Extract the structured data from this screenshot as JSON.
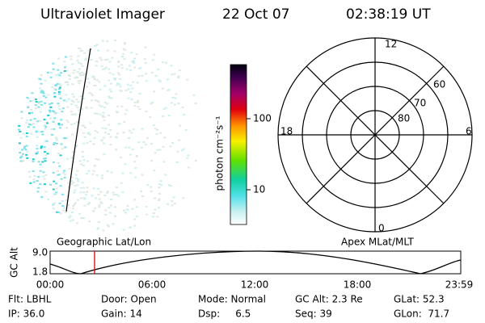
{
  "header": {
    "instrument": "Ultraviolet Imager",
    "date": "22 Oct 07",
    "time": "02:38:19 UT"
  },
  "colorbar": {
    "label": "photon cm⁻²s⁻¹",
    "ticks": [
      "100",
      "10"
    ]
  },
  "polar": {
    "hour_labels": [
      "12",
      "18",
      "6",
      "0"
    ],
    "lat_labels": [
      "80",
      "70",
      "60"
    ]
  },
  "orbit_plot": {
    "axis_label": "GC Alt",
    "y_labels": [
      "9.0",
      "1.8"
    ],
    "left_caption": "Geographic Lat/Lon",
    "right_caption": "Apex MLat/MLT",
    "x_labels": [
      "00:00",
      "06:00",
      "12:00",
      "18:00",
      "23:59"
    ]
  },
  "info": {
    "rows": [
      [
        "Flt: LBHL",
        "Door: Open",
        "Mode: Normal",
        "GC Alt: 2.3 Re",
        "GLat: 52.3"
      ],
      [
        "IP: 36.0",
        "Gain: 14",
        "Dsp:     6.5",
        "Seq: 39",
        "GLon:  71.7"
      ]
    ]
  }
}
